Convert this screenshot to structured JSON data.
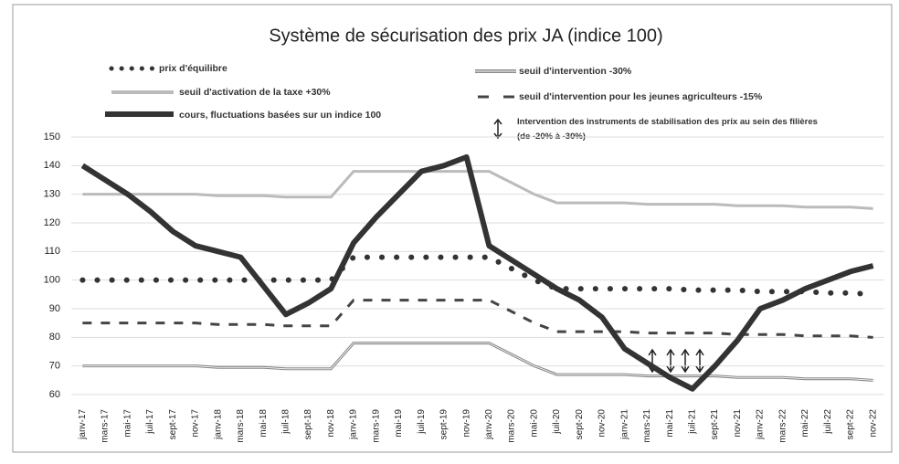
{
  "chart_data": {
    "type": "line",
    "title": "Système de sécurisation des prix JA (indice 100)",
    "categories": [
      "janv-17",
      "mars-17",
      "mai-17",
      "juil-17",
      "sept-17",
      "nov-17",
      "janv-18",
      "mars-18",
      "mai-18",
      "juil-18",
      "sept-18",
      "nov-18",
      "janv-19",
      "mars-19",
      "mai-19",
      "juil-19",
      "sept-19",
      "nov-19",
      "janv-20",
      "mars-20",
      "mai-20",
      "juil-20",
      "sept-20",
      "nov-20",
      "janv-21",
      "mars-21",
      "mai-21",
      "juil-21",
      "sept-21",
      "nov-21",
      "janv-22",
      "mars-22",
      "mai-22",
      "juil-22",
      "sept-22",
      "nov-22"
    ],
    "series": [
      {
        "name": "prix d'équilibre",
        "color": "#333333",
        "style": "dotted",
        "values": [
          100,
          100,
          100,
          100,
          100,
          100,
          100,
          100,
          100,
          100,
          100,
          100,
          108,
          108,
          108,
          108,
          108,
          108,
          108,
          104,
          100,
          97,
          97,
          97,
          97,
          97,
          97,
          96.5,
          96.5,
          96.5,
          96,
          96,
          96,
          95.5,
          95.5,
          95
        ]
      },
      {
        "name": "seuil d'activation de la taxe +30%",
        "color": "#bbbbbb",
        "style": "solid",
        "values": [
          130,
          130,
          130,
          130,
          130,
          130,
          129.5,
          129.5,
          129.5,
          129,
          129,
          129,
          138,
          138,
          138,
          138,
          138,
          138,
          138,
          134,
          130,
          127,
          127,
          127,
          127,
          126.5,
          126.5,
          126.5,
          126.5,
          126,
          126,
          126,
          125.5,
          125.5,
          125.5,
          125
        ]
      },
      {
        "name": "cours, fluctuations basées sur un indice 100",
        "color": "#333333",
        "style": "thick",
        "values": [
          140,
          135,
          130,
          124,
          117,
          112,
          110,
          108,
          98,
          88,
          92,
          97,
          113,
          122,
          130,
          138,
          140,
          143,
          112,
          107,
          102,
          97,
          93,
          87,
          76,
          71,
          66,
          62,
          70,
          79,
          90,
          93,
          97,
          100,
          103,
          105
        ]
      },
      {
        "name": "seuil d'intervention -30%",
        "color": "#888888",
        "style": "double",
        "values": [
          70,
          70,
          70,
          70,
          70,
          70,
          69.5,
          69.5,
          69.5,
          69,
          69,
          69,
          78,
          78,
          78,
          78,
          78,
          78,
          78,
          74,
          70,
          67,
          67,
          67,
          67,
          66.5,
          66.5,
          66.5,
          66.5,
          66,
          66,
          66,
          65.5,
          65.5,
          65.5,
          65
        ]
      },
      {
        "name": "seuil d'intervention pour les jeunes agriculteurs -15%",
        "color": "#444444",
        "style": "dashed",
        "values": [
          85,
          85,
          85,
          85,
          85,
          85,
          84.5,
          84.5,
          84.5,
          84,
          84,
          84,
          93,
          93,
          93,
          93,
          93,
          93,
          93,
          89,
          85,
          82,
          82,
          82,
          82,
          81.5,
          81.5,
          81.5,
          81.5,
          81,
          81,
          81,
          80.5,
          80.5,
          80.5,
          80
        ]
      }
    ],
    "annotations": [
      "Intervention des instruments de stabilisation des prix au sein des filières (de -20% à -30%)"
    ],
    "ylim": [
      60,
      150
    ],
    "yticks": [
      60,
      70,
      80,
      90,
      100,
      110,
      120,
      130,
      140,
      150
    ],
    "grid": true
  }
}
